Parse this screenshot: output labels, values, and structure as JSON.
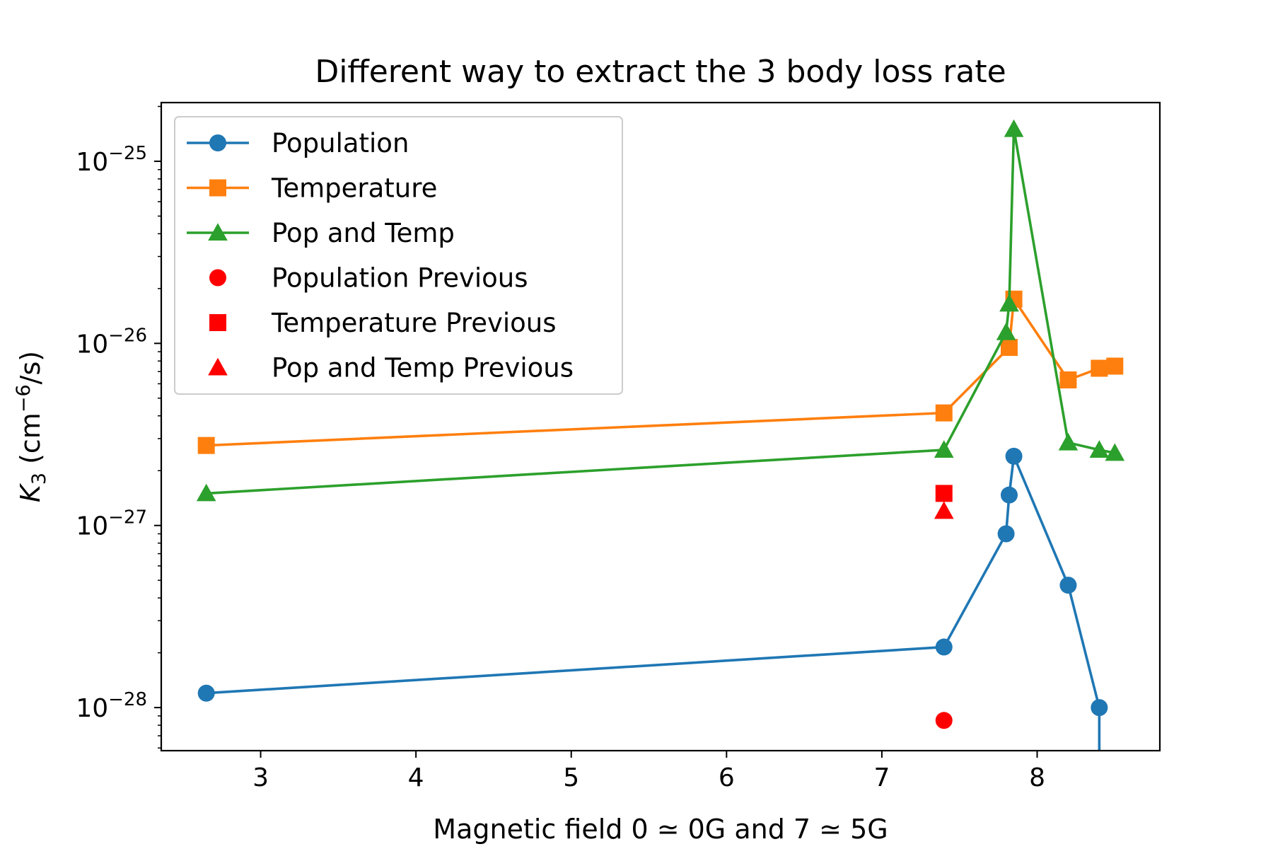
{
  "chart_data": {
    "type": "line",
    "title": "Different way to extract the 3 body loss rate",
    "xlabel": "Magnetic field 0 ≃ 0G and 7 ≃ 5G",
    "ylabel_main": "K",
    "ylabel_sub": "3",
    "ylabel_rest": " (cm",
    "ylabel_sup": "−6",
    "ylabel_end": "/s)",
    "xlim": [
      2.36,
      8.79
    ],
    "ylim": [
      5.8e-29,
      2.1e-25
    ],
    "yscale": "log",
    "grid": false,
    "legend_position": "top-left",
    "x_ticks": [
      {
        "value": 3,
        "label": "3"
      },
      {
        "value": 4,
        "label": "4"
      },
      {
        "value": 5,
        "label": "5"
      },
      {
        "value": 6,
        "label": "6"
      },
      {
        "value": 7,
        "label": "7"
      },
      {
        "value": 8,
        "label": "8"
      }
    ],
    "y_ticks": [
      {
        "value": 1e-28,
        "base": "10",
        "exp": "−28"
      },
      {
        "value": 1e-27,
        "base": "10",
        "exp": "−27"
      },
      {
        "value": 1e-26,
        "base": "10",
        "exp": "−26"
      },
      {
        "value": 1e-25,
        "base": "10",
        "exp": "−25"
      }
    ],
    "series": [
      {
        "name": "Population",
        "color": "#1f77b4",
        "marker": "circle",
        "line": true,
        "x": [
          2.65,
          7.4,
          7.8,
          7.82,
          7.85,
          8.2,
          8.4,
          8.4
        ],
        "y": [
          1.2e-28,
          2.15e-28,
          9e-28,
          1.47e-27,
          2.4e-27,
          4.7e-28,
          1e-28,
          5.8e-29
        ],
        "marker_count": 7
      },
      {
        "name": "Temperature",
        "color": "#ff7f0e",
        "marker": "square",
        "line": true,
        "x": [
          2.65,
          7.4,
          7.82,
          7.85,
          8.2,
          8.4,
          8.5
        ],
        "y": [
          2.75e-27,
          4.15e-27,
          9.5e-27,
          1.75e-26,
          6.3e-27,
          7.3e-27,
          7.5e-27
        ]
      },
      {
        "name": "Pop and Temp",
        "color": "#2ca02c",
        "marker": "triangle",
        "line": true,
        "x": [
          2.65,
          7.4,
          7.8,
          7.82,
          7.85,
          8.2,
          8.4,
          8.5
        ],
        "y": [
          1.5e-27,
          2.6e-27,
          1.15e-26,
          1.65e-26,
          1.5e-25,
          2.85e-27,
          2.6e-27,
          2.5e-27
        ]
      },
      {
        "name": "Population Previous",
        "color": "#ff0000",
        "marker": "circle",
        "line": false,
        "x": [
          7.4
        ],
        "y": [
          8.5e-29
        ]
      },
      {
        "name": "Temperature Previous",
        "color": "#ff0000",
        "marker": "square",
        "line": false,
        "x": [
          7.4
        ],
        "y": [
          1.5e-27
        ]
      },
      {
        "name": "Pop and Temp Previous",
        "color": "#ff0000",
        "marker": "triangle",
        "line": false,
        "x": [
          7.4
        ],
        "y": [
          1.2e-27
        ]
      }
    ]
  }
}
